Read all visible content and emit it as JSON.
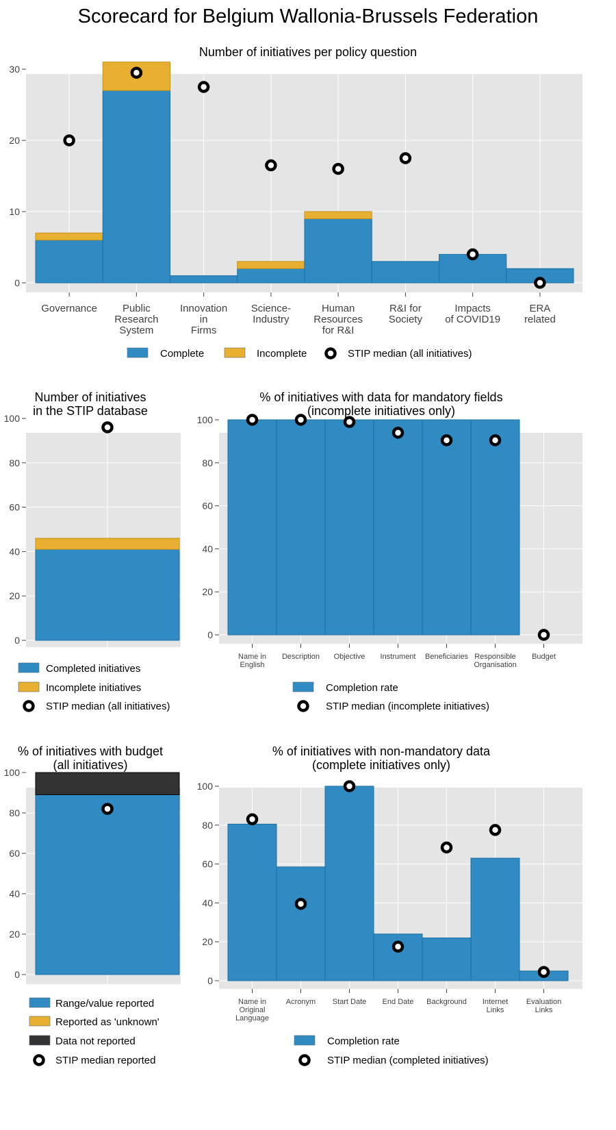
{
  "page_title": "Scorecard for Belgium Wallonia-Brussels Federation",
  "colors": {
    "complete": "#2f8bc2",
    "incomplete": "#e8b030",
    "not_reported": "#333333",
    "panel_bg": "#e5e5e5",
    "grid": "#ffffff"
  },
  "chart_data": [
    {
      "id": "policy",
      "type": "bar",
      "stacked": true,
      "title": "Number of initiatives per policy question",
      "categories": [
        "Governance",
        "Public\nResearch\nSystem",
        "Innovation\nin\nFirms",
        "Science-\nIndustry",
        "Human\nResources\nfor R&I",
        "R&I for\nSociety",
        "Impacts\nof COVID19",
        "ERA\nrelated"
      ],
      "series": [
        {
          "name": "Complete",
          "color": "#2f8bc2",
          "values": [
            6,
            27,
            1,
            2,
            9,
            3,
            4,
            2
          ]
        },
        {
          "name": "Incomplete",
          "color": "#e8b030",
          "values": [
            1,
            4,
            0,
            1,
            1,
            0,
            0,
            0
          ]
        }
      ],
      "markers": {
        "name": "STIP median (all initiatives)",
        "values": [
          20,
          29.5,
          27.5,
          16.5,
          16,
          17.5,
          4,
          0
        ]
      },
      "ylim": [
        0,
        33
      ],
      "yticks": [
        0,
        10,
        20,
        30
      ],
      "grid": true
    },
    {
      "id": "database",
      "type": "bar",
      "stacked": true,
      "title": "Number of initiatives\nin the STIP database",
      "categories": [
        ""
      ],
      "series": [
        {
          "name": "Completed initiatives",
          "color": "#2f8bc2",
          "values": [
            41
          ]
        },
        {
          "name": "Incomplete initiatives",
          "color": "#e8b030",
          "values": [
            5
          ]
        }
      ],
      "markers": {
        "name": "STIP median (all initiatives)",
        "values": [
          96
        ]
      },
      "ylim": [
        0,
        105
      ],
      "yticks": [
        0,
        20,
        40,
        60,
        80,
        100
      ],
      "grid": true
    },
    {
      "id": "mandatory",
      "type": "bar",
      "title": "% of initiatives with data for mandatory fields\n(incomplete initiatives only)",
      "categories": [
        "Name in\nEnglish",
        "Description",
        "Objective",
        "Instrument",
        "Beneficiaries",
        "Responsible\nOrganisation",
        "Budget"
      ],
      "series": [
        {
          "name": "Completion rate",
          "color": "#2f8bc2",
          "values": [
            100,
            100,
            100,
            100,
            100,
            100,
            0
          ]
        }
      ],
      "markers": {
        "name": "STIP median (incomplete initiatives)",
        "values": [
          100,
          100,
          99,
          94,
          90.5,
          90.5,
          0
        ]
      },
      "ylim": [
        0,
        105
      ],
      "yticks": [
        0,
        20,
        40,
        60,
        80,
        100
      ],
      "grid": true
    },
    {
      "id": "budget",
      "type": "bar",
      "stacked": true,
      "title": "% of initiatives with budget\n(all initiatives)",
      "categories": [
        ""
      ],
      "series": [
        {
          "name": "Range/value reported",
          "color": "#2f8bc2",
          "values": [
            89
          ]
        },
        {
          "name": "Reported as 'unknown'",
          "color": "#e8b030",
          "values": [
            0
          ]
        },
        {
          "name": "Data not reported",
          "color": "#333333",
          "values": [
            11
          ]
        }
      ],
      "markers": {
        "name": "STIP median reported",
        "values": [
          82
        ]
      },
      "ylim": [
        0,
        105
      ],
      "yticks": [
        0,
        20,
        40,
        60,
        80,
        100
      ],
      "grid": true
    },
    {
      "id": "nonmandatory",
      "type": "bar",
      "title": "% of initiatives with non-mandatory data\n(complete initiatives only)",
      "categories": [
        "Name in\nOriginal\nLanguage",
        "Acronym",
        "Start Date",
        "End Date",
        "Background",
        "Internet\nLinks",
        "Evaluation\nLinks"
      ],
      "series": [
        {
          "name": "Completion rate",
          "color": "#2f8bc2",
          "values": [
            80.5,
            58.5,
            100,
            24,
            22,
            63,
            5
          ]
        }
      ],
      "markers": {
        "name": "STIP median (completed initiatives)",
        "values": [
          83,
          39.5,
          100,
          17.5,
          68.5,
          77.5,
          4.5
        ]
      },
      "ylim": [
        0,
        105
      ],
      "yticks": [
        0,
        20,
        40,
        60,
        80,
        100
      ],
      "grid": true
    }
  ]
}
